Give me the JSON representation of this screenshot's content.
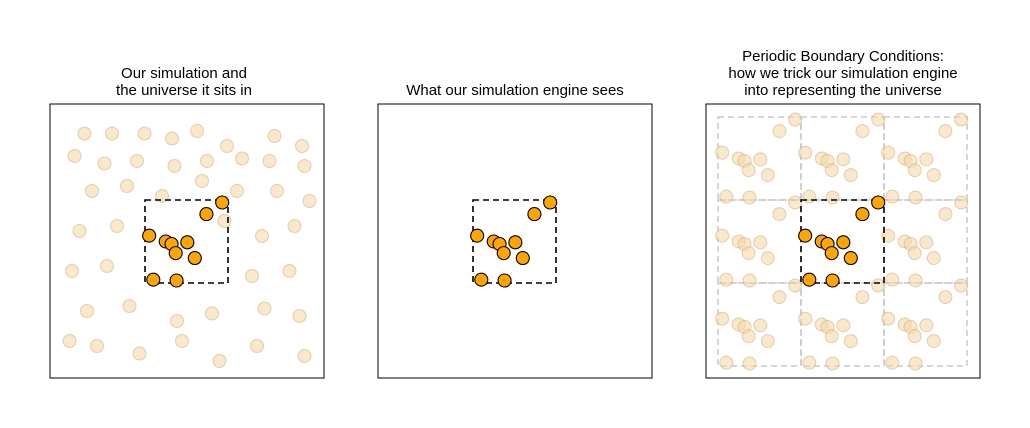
{
  "panels": [
    {
      "title": "Our simulation and\nthe universe it sits in"
    },
    {
      "title": "What our simulation engine sees"
    },
    {
      "title": "Periodic Boundary Conditions:\nhow we trick our simulation engine\ninto representing the universe"
    }
  ],
  "colors": {
    "particle_fill": "#ffa500",
    "faded_particle_fill": "#f5d9a6",
    "box_stroke": "#000000",
    "replica_stroke": "#c8c8c8"
  },
  "chart_data": {
    "type": "scatter",
    "box": [
      0,
      1
    ],
    "particles": [
      [
        0.93,
        0.97
      ],
      [
        0.74,
        0.83
      ],
      [
        0.05,
        0.57
      ],
      [
        0.25,
        0.5
      ],
      [
        0.32,
        0.47
      ],
      [
        0.51,
        0.49
      ],
      [
        0.37,
        0.36
      ],
      [
        0.6,
        0.3
      ],
      [
        0.1,
        0.04
      ],
      [
        0.38,
        0.03
      ]
    ],
    "universe_particles": [
      [
        0.09,
        0.93
      ],
      [
        0.2,
        0.93
      ],
      [
        0.33,
        0.93
      ],
      [
        0.44,
        0.91
      ],
      [
        0.54,
        0.94
      ],
      [
        0.66,
        0.88
      ],
      [
        0.85,
        0.92
      ],
      [
        0.96,
        0.88
      ],
      [
        0.05,
        0.84
      ],
      [
        0.17,
        0.81
      ],
      [
        0.3,
        0.82
      ],
      [
        0.45,
        0.8
      ],
      [
        0.58,
        0.82
      ],
      [
        0.72,
        0.83
      ],
      [
        0.83,
        0.82
      ],
      [
        0.97,
        0.8
      ],
      [
        0.12,
        0.7
      ],
      [
        0.26,
        0.72
      ],
      [
        0.4,
        0.68
      ],
      [
        0.56,
        0.74
      ],
      [
        0.7,
        0.7
      ],
      [
        0.86,
        0.7
      ],
      [
        0.99,
        0.66
      ],
      [
        0.07,
        0.54
      ],
      [
        0.22,
        0.56
      ],
      [
        0.65,
        0.58
      ],
      [
        0.8,
        0.52
      ],
      [
        0.93,
        0.56
      ],
      [
        0.04,
        0.38
      ],
      [
        0.18,
        0.4
      ],
      [
        0.76,
        0.36
      ],
      [
        0.91,
        0.38
      ],
      [
        0.1,
        0.22
      ],
      [
        0.27,
        0.24
      ],
      [
        0.46,
        0.18
      ],
      [
        0.6,
        0.21
      ],
      [
        0.81,
        0.23
      ],
      [
        0.95,
        0.2
      ],
      [
        0.03,
        0.1
      ],
      [
        0.14,
        0.08
      ],
      [
        0.31,
        0.05
      ],
      [
        0.48,
        0.1
      ],
      [
        0.63,
        0.02
      ],
      [
        0.78,
        0.08
      ],
      [
        0.97,
        0.04
      ]
    ],
    "replica_offsets": [
      -1,
      0,
      1
    ]
  }
}
